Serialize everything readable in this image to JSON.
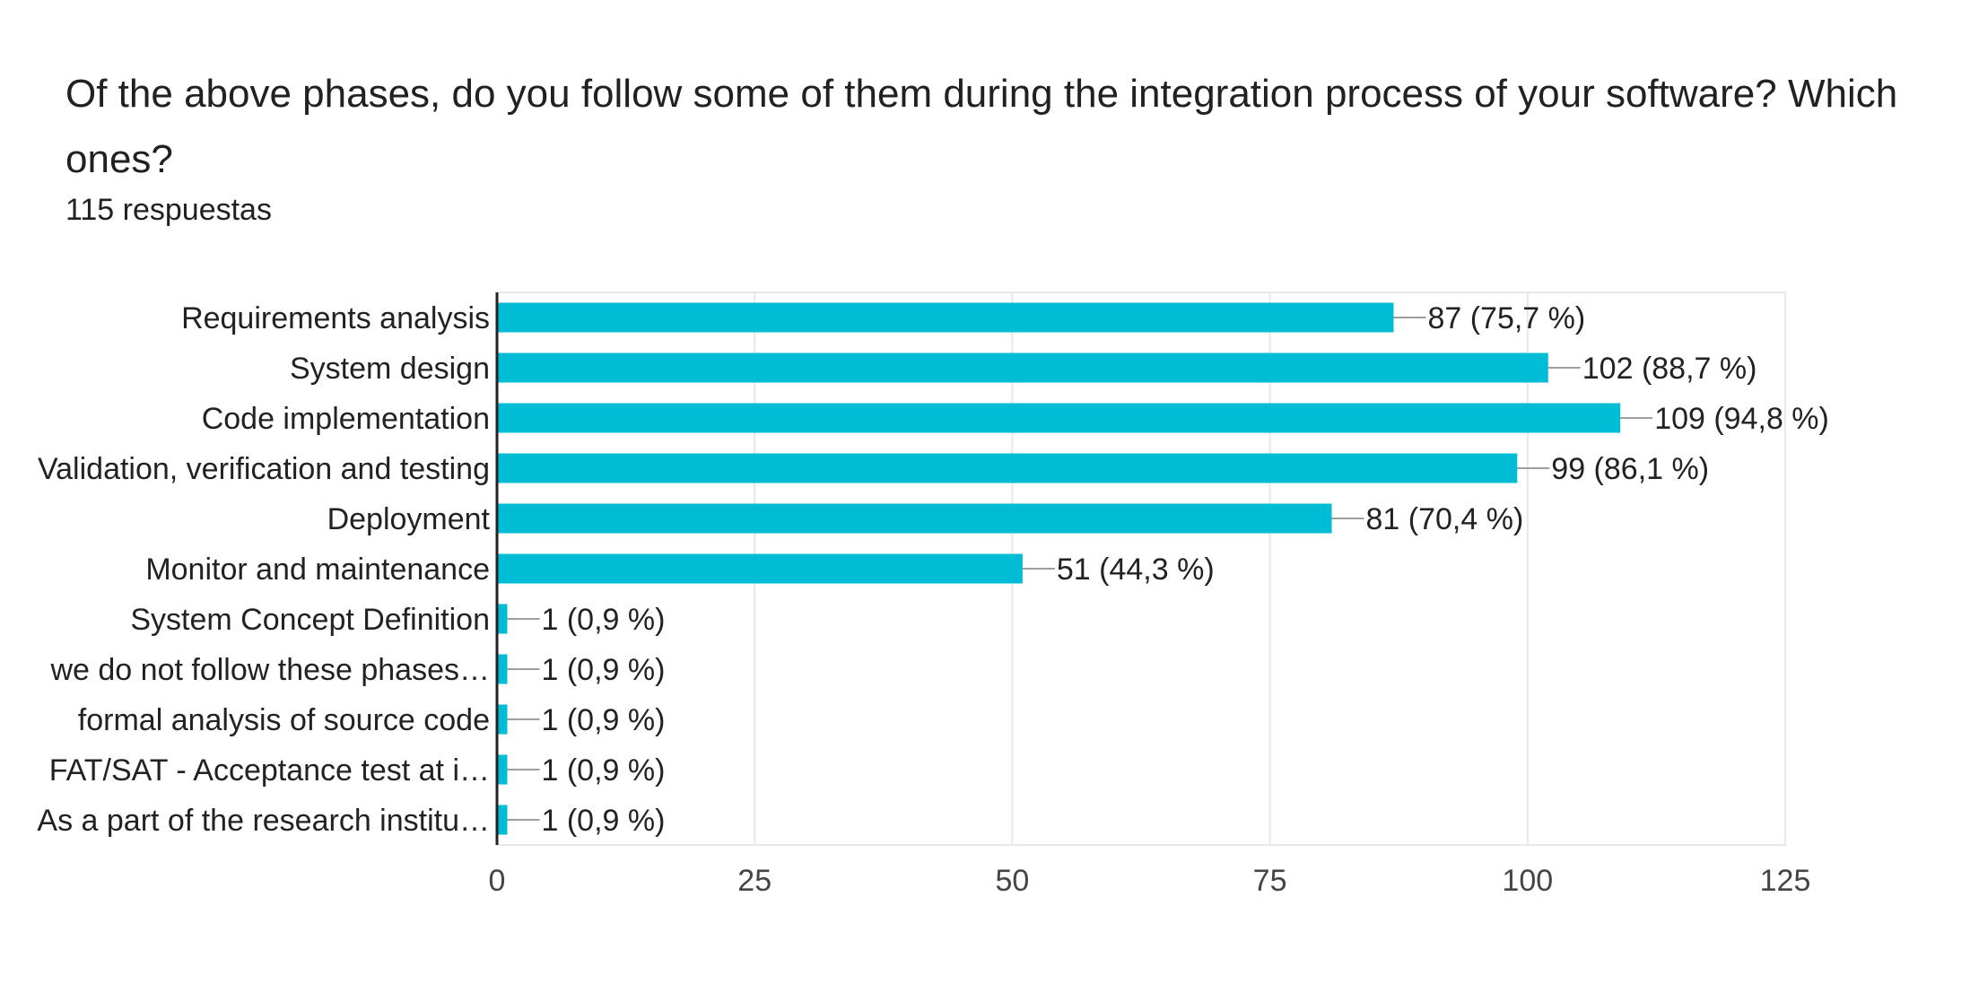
{
  "question": {
    "title": "Of the above phases, do you follow some of them during the integration process of your software? Which ones?",
    "responses": "115 respuestas"
  },
  "colors": {
    "bar": "#00bcd4",
    "connector": "#9e9e9e",
    "grid": "#e8e8e8",
    "axis": "#222222"
  },
  "chart_data": {
    "type": "bar",
    "orientation": "horizontal",
    "categories": [
      "Requirements analysis",
      "System design",
      "Code implementation",
      "Validation, verification and testing",
      "Deployment",
      "Monitor and maintenance",
      "System Concept Definition",
      "we do not follow these phases…",
      "formal analysis of source code",
      "FAT/SAT - Acceptance test at i…",
      "As a part of the research institu…"
    ],
    "values": [
      87,
      102,
      109,
      99,
      81,
      51,
      1,
      1,
      1,
      1,
      1
    ],
    "value_labels": [
      "87 (75,7 %)",
      "102 (88,7 %)",
      "109 (94,8 %)",
      "99 (86,1 %)",
      "81 (70,4 %)",
      "51 (44,3 %)",
      "1 (0,9 %)",
      "1 (0,9 %)",
      "1 (0,9 %)",
      "1 (0,9 %)",
      "1 (0,9 %)"
    ],
    "xlim": [
      0,
      125
    ],
    "xticks": [
      0,
      25,
      50,
      75,
      100,
      125
    ],
    "xtick_labels": [
      "0",
      "25",
      "50",
      "75",
      "100",
      "125"
    ],
    "grid": true,
    "legend": "none"
  }
}
